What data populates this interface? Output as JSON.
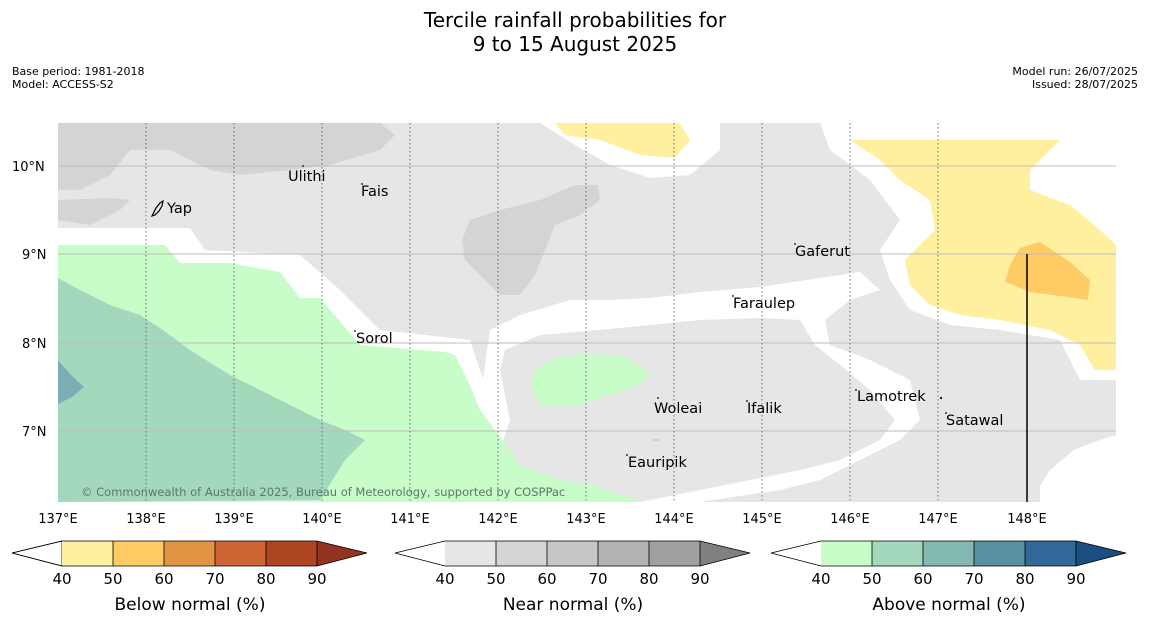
{
  "title": {
    "line1": "Tercile rainfall probabilities for",
    "line2": "9 to 15 August 2025"
  },
  "meta_left": {
    "base_period": "Base period: 1981-2018",
    "model": "Model: ACCESS-S2"
  },
  "meta_right": {
    "model_run": "Model run: 26/07/2025",
    "issued": "Issued: 28/07/2025"
  },
  "map": {
    "lon_ticks": [
      "137°E",
      "138°E",
      "139°E",
      "140°E",
      "141°E",
      "142°E",
      "143°E",
      "144°E",
      "145°E",
      "146°E",
      "147°E",
      "148°E"
    ],
    "lat_ticks": [
      "10°N",
      "9°N",
      "8°N",
      "7°N"
    ],
    "places": [
      {
        "name": "Yap"
      },
      {
        "name": "Ulithi"
      },
      {
        "name": "Fais"
      },
      {
        "name": "Gaferut"
      },
      {
        "name": "Faraulep"
      },
      {
        "name": "Sorol"
      },
      {
        "name": "Woleai"
      },
      {
        "name": "Ifalik"
      },
      {
        "name": "Lamotrek"
      },
      {
        "name": "Satawal"
      },
      {
        "name": "Eauripik"
      }
    ],
    "copyright": "© Commonwealth of Australia 2025, Bureau of Meteorology, supported by COSPPac"
  },
  "colorbars": [
    {
      "label": "Below normal (%)",
      "ticks": [
        "40",
        "50",
        "60",
        "70",
        "80",
        "90"
      ],
      "colors": [
        "#fff0a0",
        "#fecb65",
        "#e29444",
        "#cd6433",
        "#ad4523",
        "#943320"
      ]
    },
    {
      "label": "Near normal (%)",
      "ticks": [
        "40",
        "50",
        "60",
        "70",
        "80",
        "90"
      ],
      "colors": [
        "#e6e6e6",
        "#d4d4d4",
        "#c6c6c6",
        "#b3b3b3",
        "#a0a0a0",
        "#808080"
      ]
    },
    {
      "label": "Above normal (%)",
      "ticks": [
        "40",
        "50",
        "60",
        "70",
        "80",
        "90"
      ],
      "colors": [
        "#c8fcc8",
        "#a4d8bd",
        "#83b9b1",
        "#5a91a0",
        "#2f6899",
        "#1a4e80"
      ]
    }
  ],
  "palette": {
    "below_40": "#fff0a0",
    "below_50": "#fecb65",
    "near_40": "#e6e6e6",
    "near_50": "#d4d4d4",
    "above_40": "#c8fcc8",
    "above_50": "#a4d8bd",
    "above_70": "#5a91a0"
  }
}
